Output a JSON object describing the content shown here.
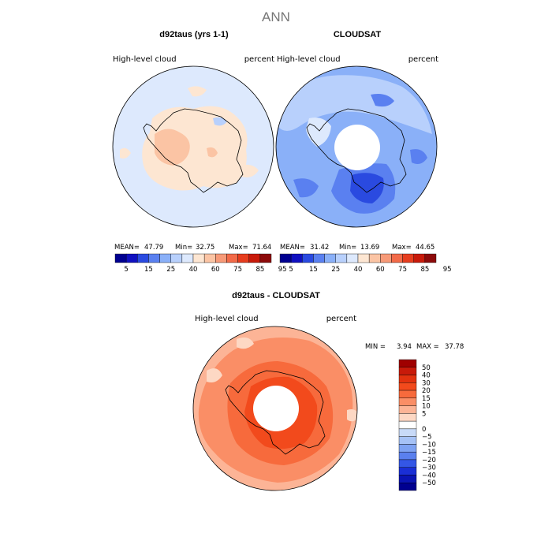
{
  "figure": {
    "title": "ANN"
  },
  "chart_data": [
    {
      "type": "heatmap",
      "projection": "south-polar-stereographic",
      "title": "d92taus (yrs 1-1)",
      "variable_label": "High-level cloud",
      "units_label": "percent",
      "stats": {
        "mean": "47.79",
        "min": "32.75",
        "max": "71.64"
      },
      "stats_labels": {
        "mean": "MEAN=",
        "min": "Min=",
        "max": "Max="
      },
      "colorbar_orientation": "horizontal",
      "colorbar_ticks": [
        "5",
        "15",
        "25",
        "40",
        "60",
        "75",
        "85",
        "95"
      ],
      "colorbar_colors": [
        "#000090",
        "#1010c0",
        "#2a4ae0",
        "#5a80f0",
        "#8ab0f8",
        "#b8d0fc",
        "#dde9fd",
        "#fde6d2",
        "#fbc4a4",
        "#f79a78",
        "#f26a48",
        "#e63d1e",
        "#c81a0a",
        "#8c0a0a"
      ]
    },
    {
      "type": "heatmap",
      "projection": "south-polar-stereographic",
      "title": "CLOUDSAT",
      "variable_label": "High-level cloud",
      "units_label": "percent",
      "stats": {
        "mean": "31.42",
        "min": "13.69",
        "max": "44.65"
      },
      "stats_labels": {
        "mean": "MEAN=",
        "min": "Min=",
        "max": "Max="
      },
      "colorbar_orientation": "horizontal",
      "colorbar_ticks": [
        "5",
        "15",
        "25",
        "40",
        "60",
        "75",
        "85",
        "95"
      ],
      "colorbar_colors": [
        "#000090",
        "#1010c0",
        "#2a4ae0",
        "#5a80f0",
        "#8ab0f8",
        "#b8d0fc",
        "#dde9fd",
        "#fde6d2",
        "#fbc4a4",
        "#f79a78",
        "#f26a48",
        "#e63d1e",
        "#c81a0a",
        "#8c0a0a"
      ],
      "missing_data_region": "pole"
    },
    {
      "type": "heatmap",
      "projection": "south-polar-stereographic",
      "title": "d92taus - CLOUDSAT",
      "variable_label": "High-level cloud",
      "units_label": "percent",
      "stats": {
        "min": "3.94",
        "max": "37.78"
      },
      "stats_labels": {
        "min": "MIN =",
        "max": "MAX ="
      },
      "colorbar_orientation": "vertical",
      "colorbar_ticks": [
        "50",
        "40",
        "30",
        "20",
        "15",
        "10",
        "5",
        "0",
        "−5",
        "−10",
        "−15",
        "−20",
        "−30",
        "−40",
        "−50"
      ],
      "colorbar_colors": [
        "#a00000",
        "#c81a0a",
        "#e2320f",
        "#f24a1c",
        "#f76a3c",
        "#fa8e66",
        "#fcb496",
        "#fdd8c4",
        "#ffffff",
        "#c8daf8",
        "#a6c2f6",
        "#7ea2f2",
        "#5a80ee",
        "#3457e6",
        "#1a2fd6",
        "#0a14b4",
        "#000090"
      ],
      "missing_data_region": "pole"
    }
  ]
}
